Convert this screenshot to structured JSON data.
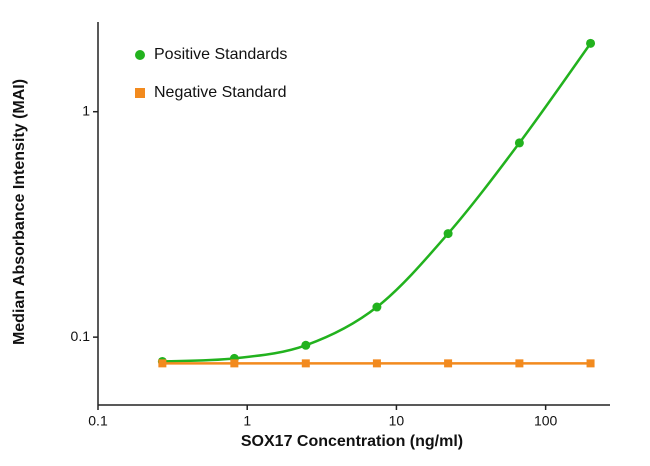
{
  "chart_data": {
    "type": "scatter",
    "x_label": "SOX17 Concentration (ng/ml)",
    "y_label": "Median Absorbance Intensity (MAI)",
    "x": [
      0.27,
      0.82,
      2.47,
      7.4,
      22.2,
      66.7,
      200
    ],
    "series": [
      {
        "name": "Positive Standards",
        "color": "#22b21e",
        "marker": "circle",
        "values": [
          0.078,
          0.0805,
          0.092,
          0.136,
          0.288,
          0.727,
          2.01
        ]
      },
      {
        "name": "Negative Standard",
        "color": "#f28a1e",
        "marker": "square",
        "values": [
          0.0765,
          0.0765,
          0.0765,
          0.0765,
          0.0765,
          0.0765,
          0.0765
        ]
      }
    ],
    "xlim": [
      0.1,
      270
    ],
    "ylim": [
      0.05,
      2.5
    ],
    "xticks": [
      0.1,
      1,
      10,
      100
    ],
    "yticks": [
      0.1,
      1
    ],
    "xscale": "log",
    "yscale": "log",
    "grid": false,
    "legend": "upper left"
  }
}
